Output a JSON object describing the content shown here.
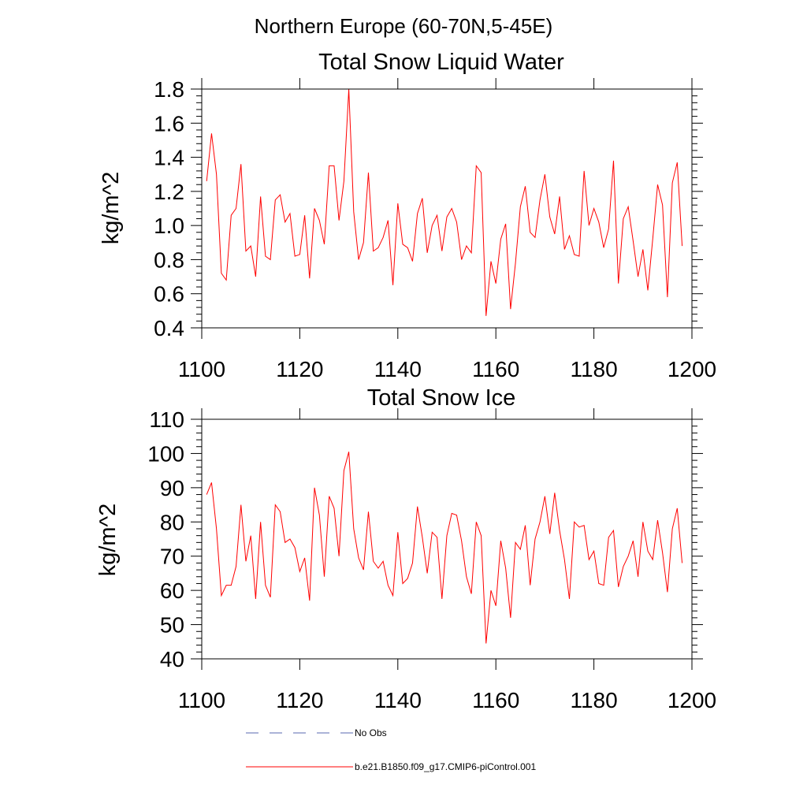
{
  "figure": {
    "title": "Northern Europe (60-70N,5-45E)",
    "legend": {
      "placement": "bottom",
      "entries": [
        {
          "label": "No Obs",
          "color": "#5a6ab0",
          "style": "dashed"
        },
        {
          "label": "b.e21.B1850.f09_g17.CMIP6-piControl.001",
          "color": "#ff0000",
          "style": "solid"
        }
      ]
    }
  },
  "chart_data": [
    {
      "type": "line",
      "title": "Total Snow Liquid Water",
      "xlabel": "",
      "ylabel": "kg/m^2",
      "xlim": [
        1100,
        1200
      ],
      "ylim": [
        0.4,
        1.8
      ],
      "xticks": [
        1100,
        1120,
        1140,
        1160,
        1180,
        1200
      ],
      "xtick_labels": [
        "1100",
        "1120",
        "1140",
        "1160",
        "1180",
        "1200"
      ],
      "yticks": [
        0.4,
        0.6,
        0.8,
        1.0,
        1.2,
        1.4,
        1.6,
        1.8
      ],
      "ytick_labels": [
        "0.4",
        "0.6",
        "0.8",
        "1.0",
        "1.2",
        "1.4",
        "1.6",
        "1.8"
      ],
      "grid": false,
      "series": [
        {
          "name": "b.e21.B1850.f09_g17.CMIP6-piControl.001",
          "color": "#ff0000",
          "x_start": 1101,
          "values": [
            1.26,
            1.54,
            1.3,
            0.72,
            0.68,
            1.06,
            1.1,
            1.36,
            0.85,
            0.88,
            0.7,
            1.17,
            0.82,
            0.8,
            1.15,
            1.18,
            1.02,
            1.07,
            0.82,
            0.83,
            1.06,
            0.69,
            1.1,
            1.03,
            0.89,
            1.35,
            1.35,
            1.03,
            1.26,
            1.8,
            1.08,
            0.8,
            0.9,
            1.31,
            0.85,
            0.87,
            0.93,
            1.03,
            0.65,
            1.13,
            0.89,
            0.87,
            0.79,
            1.07,
            1.16,
            0.84,
            1.0,
            1.06,
            0.85,
            1.05,
            1.1,
            1.02,
            0.8,
            0.88,
            0.84,
            1.35,
            1.31,
            0.47,
            0.79,
            0.66,
            0.92,
            1.01,
            0.51,
            0.78,
            1.11,
            1.23,
            0.96,
            0.93,
            1.15,
            1.3,
            1.05,
            0.95,
            1.17,
            0.86,
            0.94,
            0.83,
            0.82,
            1.32,
            1.0,
            1.1,
            1.02,
            0.87,
            0.98,
            1.38,
            0.66,
            1.04,
            1.11,
            0.91,
            0.7,
            0.86,
            0.62,
            0.92,
            1.24,
            1.12,
            0.58,
            1.25,
            1.37,
            0.88
          ]
        }
      ]
    },
    {
      "type": "line",
      "title": "Total Snow Ice",
      "xlabel": "",
      "ylabel": "kg/m^2",
      "xlim": [
        1100,
        1200
      ],
      "ylim": [
        40,
        110
      ],
      "xticks": [
        1100,
        1120,
        1140,
        1160,
        1180,
        1200
      ],
      "xtick_labels": [
        "1100",
        "1120",
        "1140",
        "1160",
        "1180",
        "1200"
      ],
      "yticks": [
        40,
        50,
        60,
        70,
        80,
        90,
        100,
        110
      ],
      "ytick_labels": [
        "40",
        "50",
        "60",
        "70",
        "80",
        "90",
        "100",
        "110"
      ],
      "grid": false,
      "series": [
        {
          "name": "b.e21.B1850.f09_g17.CMIP6-piControl.001",
          "color": "#ff0000",
          "x_start": 1101,
          "values": [
            88,
            91.5,
            78,
            58.5,
            61.5,
            61.5,
            67,
            85,
            68.5,
            76,
            57.5,
            80,
            61.5,
            58,
            85,
            83,
            74,
            75,
            72.5,
            65.5,
            69.5,
            57,
            90,
            82,
            64,
            87.5,
            84,
            70,
            95,
            100.5,
            78,
            69.5,
            66,
            83,
            68.5,
            66.5,
            68.5,
            61.5,
            58.5,
            77,
            62,
            63.5,
            68,
            84.5,
            75.5,
            65,
            77,
            75.5,
            57.5,
            76,
            82.5,
            82,
            74.5,
            64,
            59,
            80,
            76,
            44.5,
            60,
            55.5,
            74.5,
            66.5,
            52,
            74,
            72,
            79,
            61.5,
            75,
            80,
            87.5,
            76.5,
            88.5,
            77.5,
            69,
            57.5,
            80,
            78.5,
            79,
            69,
            71.5,
            62,
            61.5,
            75.5,
            77.5,
            61,
            67,
            70,
            74.5,
            64,
            80,
            71.5,
            69,
            80.5,
            71,
            59.5,
            78,
            84,
            68
          ]
        }
      ]
    }
  ]
}
